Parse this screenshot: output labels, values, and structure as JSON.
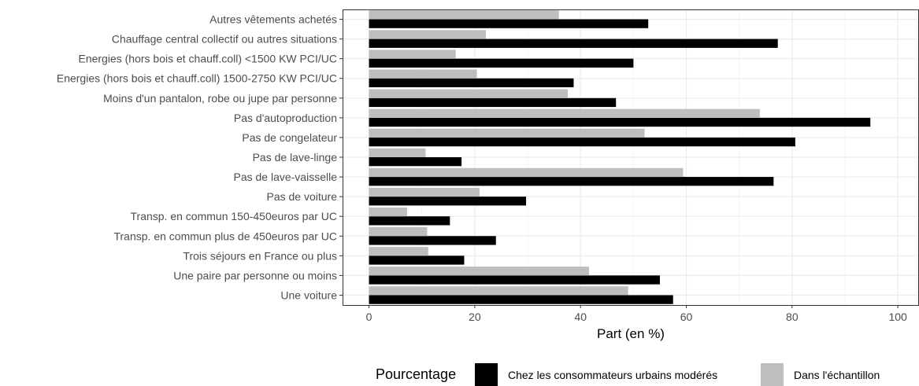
{
  "chart_data": {
    "type": "bar",
    "orientation": "horizontal",
    "categories": [
      "Une voiture",
      "Une paire par personne ou moins",
      "Trois séjours en France ou plus",
      "Transp. en commun plus de 450euros par UC",
      "Transp. en commun 150-450euros par UC",
      "Pas de voiture",
      "Pas de lave-vaisselle",
      "Pas de lave-linge",
      "Pas de congelateur",
      "Pas d'autoproduction",
      "Moins d'un pantalon, robe ou jupe par personne",
      "Energies (hors bois et chauff.coll) 1500-2750 KW PCI/UC",
      "Energies (hors bois et chauff.coll) <1500 KW PCI/UC",
      "Chauffage central collectif ou autres situations",
      "Autres vêtements achetés"
    ],
    "series": [
      {
        "name": "Chez les consommateurs urbains modérés",
        "color": "#000000",
        "values": [
          57.5,
          55.0,
          18.0,
          24.0,
          15.3,
          29.7,
          76.5,
          17.5,
          80.6,
          94.8,
          46.7,
          38.7,
          50.0,
          77.3,
          52.8
        ]
      },
      {
        "name": "Dans l'échantillon",
        "color": "#bebebe",
        "values": [
          49.0,
          41.6,
          11.2,
          11.0,
          7.2,
          20.9,
          59.4,
          10.7,
          52.1,
          73.9,
          37.6,
          20.4,
          16.4,
          22.1,
          35.9
        ]
      }
    ],
    "xlabel": "Part (en %)",
    "ylabel": "",
    "xlim": [
      -5,
      104
    ],
    "x_ticks": [
      0,
      20,
      40,
      60,
      80,
      100
    ],
    "grid": true,
    "legend": {
      "title": "Pourcentage",
      "position": "bottom"
    }
  }
}
